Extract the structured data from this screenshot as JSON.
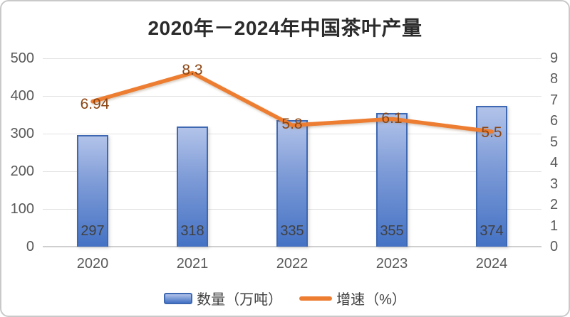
{
  "title": "2020年－2024年中国茶叶产量",
  "chart_data": {
    "type": "bar",
    "subtype": "combo-bar-line-dual-axis",
    "categories": [
      "2020",
      "2021",
      "2022",
      "2023",
      "2024"
    ],
    "series": [
      {
        "name": "数量（万吨）",
        "type": "bar",
        "axis": "left",
        "values": [
          297,
          318,
          335,
          355,
          374
        ]
      },
      {
        "name": "增速（%）",
        "type": "line",
        "axis": "right",
        "values": [
          6.94,
          8.3,
          5.8,
          6.1,
          5.5
        ]
      }
    ],
    "left_axis": {
      "min": 0,
      "max": 500,
      "step": 100,
      "ticks": [
        "0",
        "100",
        "200",
        "300",
        "400",
        "500"
      ]
    },
    "right_axis": {
      "min": 0,
      "max": 9,
      "step": 1,
      "ticks": [
        "0",
        "1",
        "2",
        "3",
        "4",
        "5",
        "6",
        "7",
        "8",
        "9"
      ]
    },
    "grid": true,
    "legend_position": "bottom"
  },
  "colors": {
    "bar_fill_top": "#b2c3e9",
    "bar_fill_bottom": "#4472c4",
    "bar_border": "#3e68b2",
    "line": "#ed7d31",
    "point_label": "#8b4512",
    "bar_value_label": "#404040",
    "axis_text": "#595959",
    "title_text": "#2b2b2b",
    "gridline": "#e2e2e2",
    "axis_line": "#cfcfcf",
    "chart_border": "#c9c9c9"
  }
}
